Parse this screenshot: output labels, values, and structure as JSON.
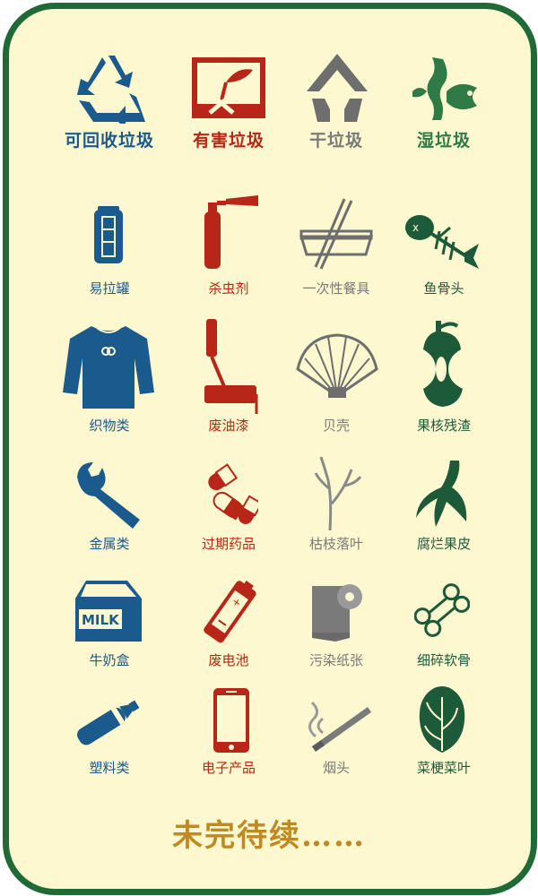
{
  "categories": [
    {
      "label": "可回收垃圾",
      "color": "#1b5a8c",
      "icon": "recycle-icon"
    },
    {
      "label": "有害垃圾",
      "color": "#b72616",
      "icon": "hazardous-icon"
    },
    {
      "label": "干垃圾",
      "color": "#6e6e6e",
      "icon": "dry-waste-icon"
    },
    {
      "label": "湿垃圾",
      "color": "#2f7a45",
      "icon": "wet-waste-icon"
    }
  ],
  "rows": [
    [
      "易拉罐",
      "杀虫剂",
      "一次性餐具",
      "鱼骨头"
    ],
    [
      "织物类",
      "废油漆",
      "贝壳",
      "果核残渣"
    ],
    [
      "金属类",
      "过期药品",
      "枯枝落叶",
      "腐烂果皮"
    ],
    [
      "牛奶盒",
      "废电池",
      "污染纸张",
      "细碎软骨"
    ],
    [
      "塑料类",
      "电子产品",
      "烟头",
      "菜梗菜叶"
    ]
  ],
  "icon_texts": {
    "milk": "MILK"
  },
  "footer": "未完待续……"
}
